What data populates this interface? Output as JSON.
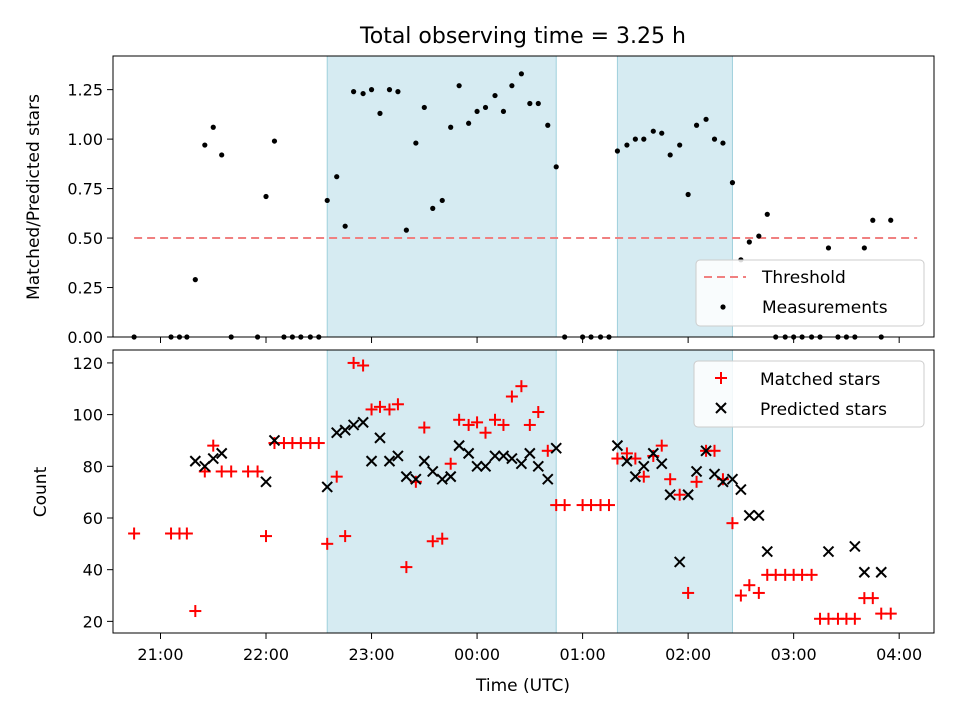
{
  "title": "Total observing time = 3.25 h",
  "chart_data": [
    {
      "type": "scatter",
      "ylabel": "Matched/Predicted stars",
      "ylim": [
        0,
        1.42
      ],
      "xlim_hours": [
        20.55,
        28.33
      ],
      "yticks": [
        0,
        0.25,
        0.5,
        0.75,
        1.0,
        1.25
      ],
      "ytick_labels": [
        "0.00",
        "0.25",
        "0.50",
        "0.75",
        "1.00",
        "1.25"
      ],
      "shaded_intervals_hours": [
        [
          22.58,
          24.75
        ],
        [
          25.33,
          26.42
        ]
      ],
      "threshold": {
        "name": "Threshold",
        "x_hours": [
          20.75,
          28.17
        ],
        "y": 0.5,
        "color": "#f08080"
      },
      "series": [
        {
          "name": "Measurements",
          "color": "#000000",
          "x_hours": [
            20.75,
            21.1,
            21.18,
            21.25,
            21.33,
            21.42,
            21.5,
            21.58,
            21.67,
            21.92,
            22.0,
            22.08,
            22.17,
            22.25,
            22.33,
            22.42,
            22.5,
            22.58,
            22.67,
            22.75,
            22.83,
            22.92,
            23.0,
            23.08,
            23.17,
            23.25,
            23.33,
            23.42,
            23.5,
            23.58,
            23.67,
            23.75,
            23.83,
            23.92,
            24.0,
            24.08,
            24.17,
            24.25,
            24.33,
            24.42,
            24.5,
            24.58,
            24.67,
            24.75,
            24.83,
            25.0,
            25.08,
            25.17,
            25.25,
            25.33,
            25.42,
            25.5,
            25.58,
            25.67,
            25.75,
            25.83,
            25.92,
            26.0,
            26.08,
            26.17,
            26.25,
            26.33,
            26.42,
            26.5,
            26.58,
            26.67,
            26.75,
            26.83,
            26.92,
            27.0,
            27.08,
            27.17,
            27.25,
            27.33,
            27.42,
            27.5,
            27.58,
            27.67,
            27.75,
            27.83,
            27.92
          ],
          "y": [
            0,
            0,
            0,
            0,
            0.29,
            0.97,
            1.06,
            0.92,
            0,
            0,
            0.71,
            0.99,
            0,
            0,
            0,
            0,
            0,
            0.69,
            0.81,
            0.56,
            1.24,
            1.23,
            1.25,
            1.13,
            1.25,
            1.24,
            0.54,
            0.98,
            1.16,
            0.65,
            0.69,
            1.06,
            1.27,
            1.08,
            1.14,
            1.16,
            1.22,
            1.14,
            1.27,
            1.33,
            1.18,
            1.18,
            1.07,
            0.86,
            0,
            0,
            0,
            0,
            0,
            0.94,
            0.97,
            1.0,
            1.0,
            1.04,
            1.03,
            0.92,
            0.97,
            0.72,
            1.07,
            1.1,
            1.0,
            0.98,
            0.78,
            0.39,
            0.48,
            0.51,
            0.62,
            0,
            0,
            0,
            0,
            0,
            0,
            0.45,
            0,
            0,
            0,
            0.45,
            0.59,
            0,
            0.59
          ]
        }
      ]
    },
    {
      "type": "scatter",
      "ylabel": "Count",
      "xlabel": "Time (UTC)",
      "ylim": [
        15.5,
        125
      ],
      "xlim_hours": [
        20.55,
        28.33
      ],
      "yticks": [
        20,
        40,
        60,
        80,
        100,
        120
      ],
      "ytick_labels": [
        "20",
        "40",
        "60",
        "80",
        "100",
        "120"
      ],
      "xticks_hours": [
        21,
        22,
        23,
        24,
        25,
        26,
        27,
        28
      ],
      "xtick_labels": [
        "21:00",
        "22:00",
        "23:00",
        "00:00",
        "01:00",
        "02:00",
        "03:00",
        "04:00"
      ],
      "shaded_intervals_hours": [
        [
          22.58,
          24.75
        ],
        [
          25.33,
          26.42
        ]
      ],
      "series": [
        {
          "name": "Matched stars",
          "color": "#ff0000",
          "marker": "plus",
          "x_hours": [
            20.75,
            21.1,
            21.18,
            21.25,
            21.33,
            21.42,
            21.5,
            21.58,
            21.67,
            21.83,
            21.92,
            22.0,
            22.08,
            22.17,
            22.25,
            22.33,
            22.42,
            22.5,
            22.58,
            22.67,
            22.75,
            22.83,
            22.92,
            23.0,
            23.08,
            23.17,
            23.25,
            23.33,
            23.42,
            23.5,
            23.58,
            23.67,
            23.75,
            23.83,
            23.92,
            24.0,
            24.08,
            24.17,
            24.25,
            24.33,
            24.42,
            24.5,
            24.58,
            24.67,
            24.75,
            24.83,
            25.0,
            25.08,
            25.17,
            25.25,
            25.33,
            25.42,
            25.5,
            25.58,
            25.67,
            25.75,
            25.83,
            25.92,
            26.0,
            26.08,
            26.17,
            26.25,
            26.33,
            26.42,
            26.5,
            26.58,
            26.67,
            26.75,
            26.83,
            26.92,
            27.0,
            27.08,
            27.17,
            27.25,
            27.33,
            27.42,
            27.5,
            27.58,
            27.67,
            27.75,
            27.83,
            27.92
          ],
          "y": [
            54,
            54,
            54,
            54,
            24,
            78,
            88,
            78,
            78,
            78,
            78,
            53,
            89,
            89,
            89,
            89,
            89,
            89,
            50,
            76,
            53,
            120,
            119,
            102,
            103,
            102,
            104,
            41,
            74,
            95,
            51,
            52,
            81,
            98,
            96,
            97,
            93,
            98,
            96,
            107,
            111,
            96,
            101,
            86,
            65,
            65,
            65,
            65,
            65,
            65,
            83,
            85,
            83,
            76,
            84,
            88,
            75,
            69,
            31,
            74,
            86,
            86,
            75,
            58,
            30,
            34,
            31,
            38,
            38,
            38,
            38,
            38,
            38,
            21,
            21,
            21,
            21,
            21,
            29,
            29,
            23,
            23
          ]
        },
        {
          "name": "Predicted stars",
          "color": "#000000",
          "marker": "x",
          "x_hours": [
            21.33,
            21.42,
            21.5,
            21.58,
            22.0,
            22.08,
            22.58,
            22.67,
            22.75,
            22.83,
            22.92,
            23.0,
            23.08,
            23.17,
            23.25,
            23.33,
            23.42,
            23.5,
            23.58,
            23.67,
            23.75,
            23.83,
            23.92,
            24.0,
            24.08,
            24.17,
            24.25,
            24.33,
            24.42,
            24.5,
            24.58,
            24.67,
            24.75,
            25.33,
            25.42,
            25.5,
            25.58,
            25.67,
            25.75,
            25.83,
            25.92,
            26.0,
            26.08,
            26.17,
            26.25,
            26.33,
            26.42,
            26.5,
            26.58,
            26.67,
            26.75,
            27.33,
            27.58,
            27.67,
            27.83
          ],
          "y": [
            82,
            80,
            83,
            85,
            74,
            90,
            72,
            93,
            94,
            96,
            97,
            82,
            91,
            82,
            84,
            76,
            75,
            82,
            78,
            75,
            76,
            88,
            85,
            80,
            80,
            84,
            84,
            83,
            81,
            85,
            80,
            75,
            87,
            88,
            82,
            76,
            80,
            85,
            81,
            69,
            43,
            69,
            78,
            86,
            77,
            74,
            75,
            71,
            61,
            61,
            47,
            47,
            49,
            39,
            39
          ]
        }
      ]
    }
  ]
}
